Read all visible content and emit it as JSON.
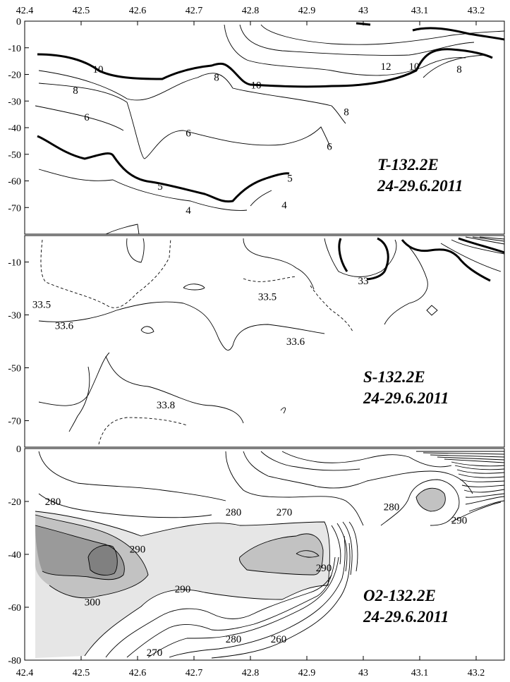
{
  "chart_data": [
    {
      "type": "contour",
      "title": "T-132.2E",
      "subtitle": "24-29.6.2011",
      "x_ticks": [
        "42.4",
        "42.5",
        "42.6",
        "42.7",
        "42.8",
        "42.9",
        "43",
        "43.1",
        "43.2"
      ],
      "y_ticks": [
        "0",
        "-10",
        "-20",
        "-30",
        "-40",
        "-50",
        "-60",
        "-70"
      ],
      "xlim": [
        42.4,
        43.25
      ],
      "ylim": [
        -80,
        0
      ],
      "contour_labels": [
        {
          "text": "10",
          "x": 42.53,
          "y": -18
        },
        {
          "text": "10",
          "x": 42.81,
          "y": -24
        },
        {
          "text": "10",
          "x": 43.09,
          "y": -17
        },
        {
          "text": "12",
          "x": 43.04,
          "y": -17
        },
        {
          "text": "8",
          "x": 42.49,
          "y": -26
        },
        {
          "text": "8",
          "x": 42.74,
          "y": -21
        },
        {
          "text": "8",
          "x": 42.97,
          "y": -34
        },
        {
          "text": "8",
          "x": 43.17,
          "y": -18
        },
        {
          "text": "6",
          "x": 42.51,
          "y": -36
        },
        {
          "text": "6",
          "x": 42.69,
          "y": -42
        },
        {
          "text": "6",
          "x": 42.94,
          "y": -47
        },
        {
          "text": "5",
          "x": 42.64,
          "y": -62
        },
        {
          "text": "5",
          "x": 42.87,
          "y": -59
        },
        {
          "text": "4",
          "x": 42.69,
          "y": -71
        },
        {
          "text": "4",
          "x": 42.86,
          "y": -69
        }
      ]
    },
    {
      "type": "contour",
      "title": "S-132.2E",
      "subtitle": "24-29.6.2011",
      "y_ticks": [
        "-10",
        "-30",
        "-50",
        "-70"
      ],
      "xlim": [
        42.4,
        43.25
      ],
      "ylim": [
        -80,
        0
      ],
      "contour_labels": [
        {
          "text": "33.5",
          "x": 42.43,
          "y": -26
        },
        {
          "text": "33.5",
          "x": 42.83,
          "y": -23
        },
        {
          "text": "33.6",
          "x": 42.47,
          "y": -34
        },
        {
          "text": "33.6",
          "x": 42.88,
          "y": -40
        },
        {
          "text": "33.8",
          "x": 42.65,
          "y": -64
        },
        {
          "text": "33",
          "x": 43.0,
          "y": -17
        }
      ]
    },
    {
      "type": "contour",
      "title": "O2-132.2E",
      "subtitle": "24-29.6.2011",
      "y_ticks": [
        "0",
        "-20",
        "-40",
        "-60",
        "-80"
      ],
      "x_ticks": [
        "42.4",
        "42.5",
        "42.6",
        "42.7",
        "42.8",
        "42.9",
        "43",
        "43.1",
        "43.2"
      ],
      "xlim": [
        42.4,
        43.25
      ],
      "ylim": [
        -80,
        0
      ],
      "contour_labels": [
        {
          "text": "280",
          "x": 42.45,
          "y": -20
        },
        {
          "text": "280",
          "x": 42.77,
          "y": -24
        },
        {
          "text": "270",
          "x": 42.86,
          "y": -24
        },
        {
          "text": "280",
          "x": 43.05,
          "y": -22
        },
        {
          "text": "290",
          "x": 42.6,
          "y": -38
        },
        {
          "text": "290",
          "x": 42.68,
          "y": -53
        },
        {
          "text": "290",
          "x": 42.93,
          "y": -45
        },
        {
          "text": "290",
          "x": 43.17,
          "y": -27
        },
        {
          "text": "300",
          "x": 42.52,
          "y": -58
        },
        {
          "text": "280",
          "x": 42.77,
          "y": -72
        },
        {
          "text": "260",
          "x": 42.85,
          "y": -72
        },
        {
          "text": "270",
          "x": 42.63,
          "y": -77
        }
      ]
    }
  ]
}
